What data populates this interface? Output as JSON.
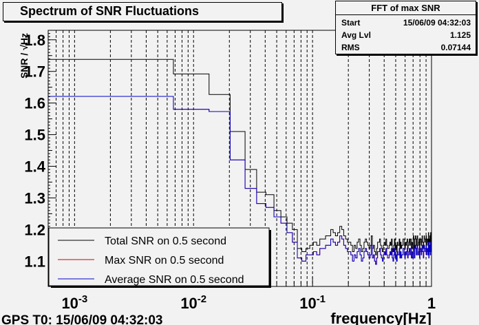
{
  "chart_data": {
    "type": "line",
    "title": "Spectrum of SNR Fluctuations",
    "xlabel": "frequency[Hz]",
    "ylabel": "SNR / √Hz",
    "xscale": "log",
    "xlim": [
      0.0006,
      1
    ],
    "ylim": [
      1.02,
      1.83
    ],
    "grid": "vertical",
    "x_ticks": [
      {
        "value": 0.001,
        "base": "10",
        "exp": "-3"
      },
      {
        "value": 0.01,
        "base": "10",
        "exp": "-2"
      },
      {
        "value": 0.1,
        "base": "10",
        "exp": "-1"
      },
      {
        "value": 1,
        "label": "1"
      }
    ],
    "y_ticks": [
      1.1,
      1.2,
      1.3,
      1.4,
      1.5,
      1.6,
      1.7,
      1.8
    ],
    "x_edges": [
      0.0006,
      0.00677,
      0.0135,
      0.0203,
      0.0271,
      0.0339,
      0.0406,
      0.0474,
      0.0542,
      0.061,
      0.0677,
      0.0745,
      0.0813,
      0.088,
      0.0948,
      0.1016,
      0.1084,
      0.1151,
      0.1219,
      0.1287,
      0.1354,
      0.1422,
      0.149,
      0.1558,
      0.1625,
      0.1693,
      0.1761,
      0.1828,
      0.1896,
      0.1964,
      0.2032,
      0.2099,
      0.2167,
      0.2235,
      0.2302,
      0.237,
      0.2438,
      0.2506,
      0.2573,
      0.2641,
      0.2709,
      0.2776,
      0.2844,
      0.2912,
      0.298,
      0.3047,
      0.3115,
      0.3183,
      0.325,
      0.3318,
      0.3386,
      0.3454,
      0.3521,
      0.3589,
      0.3657,
      0.3724,
      0.3792,
      0.386,
      0.3928,
      0.3995,
      0.4063,
      0.4131,
      0.4198,
      0.4266,
      0.4334,
      0.4402,
      0.4469,
      0.4537,
      0.4605,
      0.4672,
      0.474,
      0.4808,
      0.4876,
      0.4943,
      0.5011,
      0.5079,
      0.5146,
      0.5214,
      0.5282,
      0.535,
      0.5417,
      0.5485,
      0.5553,
      0.562,
      0.5688,
      0.5756,
      0.5824,
      0.5891,
      0.5959,
      0.6027,
      0.6094,
      0.6162,
      0.623,
      0.6298,
      0.6365,
      0.6433,
      0.6501,
      0.6568,
      0.6636,
      0.6704,
      0.6772,
      0.6839,
      0.6907,
      0.6975,
      0.7042,
      0.711,
      0.7178,
      0.7246,
      0.7313,
      0.7381,
      0.7449,
      0.7516,
      0.7584,
      0.7652,
      0.772,
      0.7787,
      0.7855,
      0.7923,
      0.799,
      0.8058,
      0.8126,
      0.8194,
      0.8261,
      0.8329,
      0.8397,
      0.8464,
      0.8532,
      0.86,
      0.8668,
      0.8735,
      0.8803,
      0.8871,
      0.8938,
      0.9006,
      0.9074,
      0.9142,
      0.9209,
      0.9277,
      0.9345,
      0.9412,
      0.948,
      0.9548,
      0.9616,
      0.9683,
      0.9751,
      0.9819,
      0.9886,
      0.9954,
      1
    ],
    "series": [
      {
        "name": "Total SNR on 0.5 second",
        "color": "#000000",
        "values": [
          1.738,
          1.692,
          1.627,
          1.51,
          1.39,
          1.318,
          1.31,
          1.26,
          1.24,
          1.22,
          1.2,
          1.14,
          1.13,
          1.14,
          1.15,
          1.16,
          1.15,
          1.17,
          1.17,
          1.18,
          1.18,
          1.2,
          1.19,
          1.18,
          1.19,
          1.21,
          1.2,
          1.18,
          1.17,
          1.16,
          1.16,
          1.15,
          1.13,
          1.15,
          1.14,
          1.16,
          1.17,
          1.15,
          1.13,
          1.14,
          1.16,
          1.17,
          1.16,
          1.15,
          1.14,
          1.15,
          1.18,
          1.14,
          1.15,
          1.13,
          1.12,
          1.14,
          1.16,
          1.16,
          1.17,
          1.15,
          1.14,
          1.13,
          1.15,
          1.16,
          1.15,
          1.17,
          1.15,
          1.14,
          1.14,
          1.15,
          1.16,
          1.15,
          1.17,
          1.14,
          1.13,
          1.15,
          1.17,
          1.14,
          1.15,
          1.13,
          1.16,
          1.15,
          1.15,
          1.17,
          1.14,
          1.16,
          1.14,
          1.15,
          1.15,
          1.17,
          1.17,
          1.15,
          1.14,
          1.16,
          1.15,
          1.16,
          1.17,
          1.14,
          1.15,
          1.16,
          1.17,
          1.15,
          1.17,
          1.17,
          1.14,
          1.16,
          1.14,
          1.14,
          1.18,
          1.17,
          1.14,
          1.17,
          1.18,
          1.17,
          1.15,
          1.17,
          1.18,
          1.15,
          1.15,
          1.16,
          1.17,
          1.14,
          1.16,
          1.17,
          1.17,
          1.15,
          1.16,
          1.18,
          1.16,
          1.16,
          1.14,
          1.16,
          1.18,
          1.17,
          1.17,
          1.16,
          1.17,
          1.18,
          1.15,
          1.17,
          1.17,
          1.16,
          1.15,
          1.19,
          1.14,
          1.17,
          1.16,
          1.18,
          1.15,
          1.19,
          1.16,
          1.18,
          1.14
        ]
      },
      {
        "name": "Max SNR on 0.5 second",
        "color": "#cc0000",
        "values": [
          1.621,
          1.58,
          1.573,
          1.42,
          1.33,
          1.282,
          1.27,
          1.24,
          1.22,
          1.19,
          1.16,
          1.11,
          1.1,
          1.12,
          1.12,
          1.13,
          1.12,
          1.14,
          1.14,
          1.15,
          1.15,
          1.17,
          1.16,
          1.15,
          1.16,
          1.18,
          1.17,
          1.15,
          1.14,
          1.13,
          1.13,
          1.12,
          1.1,
          1.12,
          1.11,
          1.13,
          1.14,
          1.12,
          1.1,
          1.11,
          1.13,
          1.14,
          1.13,
          1.12,
          1.11,
          1.12,
          1.15,
          1.11,
          1.12,
          1.1,
          1.09,
          1.11,
          1.13,
          1.13,
          1.14,
          1.12,
          1.11,
          1.1,
          1.12,
          1.13,
          1.12,
          1.14,
          1.12,
          1.11,
          1.11,
          1.12,
          1.13,
          1.12,
          1.14,
          1.11,
          1.1,
          1.12,
          1.14,
          1.11,
          1.12,
          1.1,
          1.13,
          1.12,
          1.12,
          1.14,
          1.11,
          1.13,
          1.11,
          1.12,
          1.12,
          1.14,
          1.14,
          1.12,
          1.11,
          1.13,
          1.12,
          1.13,
          1.14,
          1.11,
          1.12,
          1.13,
          1.14,
          1.12,
          1.14,
          1.14,
          1.11,
          1.13,
          1.11,
          1.11,
          1.15,
          1.14,
          1.11,
          1.14,
          1.15,
          1.14,
          1.12,
          1.14,
          1.15,
          1.12,
          1.12,
          1.13,
          1.14,
          1.11,
          1.13,
          1.14,
          1.14,
          1.12,
          1.13,
          1.15,
          1.13,
          1.13,
          1.11,
          1.13,
          1.15,
          1.14,
          1.14,
          1.13,
          1.14,
          1.15,
          1.12,
          1.14,
          1.14,
          1.13,
          1.12,
          1.16,
          1.11,
          1.14,
          1.13,
          1.15,
          1.12,
          1.16,
          1.13,
          1.15,
          1.11
        ]
      },
      {
        "name": "Average SNR on 0.5 second",
        "color": "#0000cc",
        "values": [
          1.621,
          1.58,
          1.573,
          1.42,
          1.33,
          1.282,
          1.27,
          1.24,
          1.22,
          1.19,
          1.16,
          1.11,
          1.1,
          1.12,
          1.12,
          1.13,
          1.12,
          1.14,
          1.14,
          1.15,
          1.15,
          1.17,
          1.16,
          1.15,
          1.16,
          1.18,
          1.17,
          1.15,
          1.14,
          1.13,
          1.13,
          1.12,
          1.1,
          1.12,
          1.11,
          1.13,
          1.14,
          1.12,
          1.1,
          1.11,
          1.13,
          1.14,
          1.13,
          1.12,
          1.11,
          1.12,
          1.15,
          1.11,
          1.12,
          1.1,
          1.09,
          1.11,
          1.13,
          1.13,
          1.14,
          1.12,
          1.11,
          1.1,
          1.12,
          1.13,
          1.12,
          1.14,
          1.12,
          1.11,
          1.11,
          1.12,
          1.13,
          1.12,
          1.14,
          1.11,
          1.1,
          1.12,
          1.14,
          1.11,
          1.12,
          1.1,
          1.13,
          1.12,
          1.12,
          1.14,
          1.11,
          1.13,
          1.11,
          1.12,
          1.12,
          1.14,
          1.14,
          1.12,
          1.11,
          1.13,
          1.12,
          1.13,
          1.14,
          1.11,
          1.12,
          1.13,
          1.14,
          1.12,
          1.14,
          1.14,
          1.11,
          1.13,
          1.11,
          1.11,
          1.15,
          1.14,
          1.11,
          1.14,
          1.15,
          1.14,
          1.12,
          1.14,
          1.15,
          1.12,
          1.12,
          1.13,
          1.14,
          1.11,
          1.13,
          1.14,
          1.14,
          1.12,
          1.13,
          1.15,
          1.13,
          1.13,
          1.11,
          1.13,
          1.15,
          1.14,
          1.14,
          1.13,
          1.14,
          1.15,
          1.12,
          1.14,
          1.14,
          1.13,
          1.12,
          1.16,
          1.11,
          1.14,
          1.13,
          1.15,
          1.12,
          1.16,
          1.13,
          1.15,
          1.11
        ]
      }
    ]
  },
  "stats_box": {
    "title": "FFT of max SNR",
    "rows": [
      {
        "label": "Start",
        "value": "15/06/09 04:32:03"
      },
      {
        "label": "Avg Lvl",
        "value": "1.125"
      },
      {
        "label": "RMS",
        "value": "0.07144"
      }
    ]
  },
  "footer": {
    "gps": "GPS T0: 15/06/09 04:32:03"
  }
}
